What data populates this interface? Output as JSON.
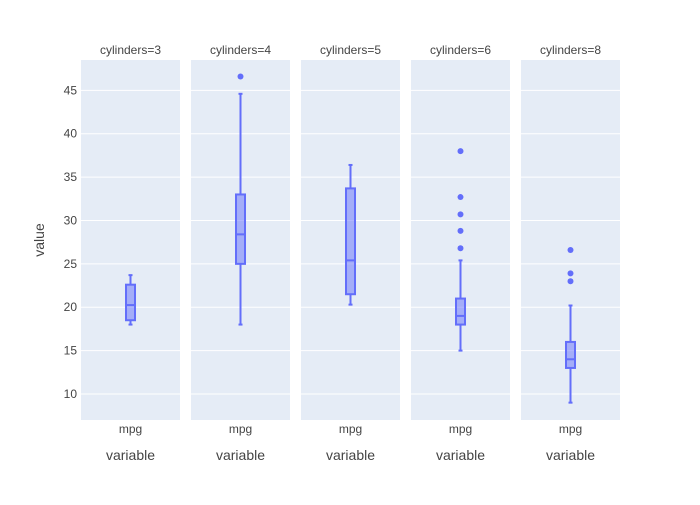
{
  "chart_data": {
    "type": "box",
    "ylabel": "value",
    "xlabel": "variable",
    "xcategory": "mpg",
    "ylim": [
      7,
      48.5
    ],
    "yticks": [
      10,
      15,
      20,
      25,
      30,
      35,
      40,
      45
    ],
    "grid": true,
    "color": "#636EFA",
    "panel_background": "#E5ECF6",
    "facets": [
      {
        "title": "cylinders=3",
        "box": {
          "min": 18.0,
          "q1": 18.5,
          "median": 20.25,
          "q3": 22.6,
          "max": 23.7
        },
        "outliers": []
      },
      {
        "title": "cylinders=4",
        "box": {
          "min": 18.0,
          "q1": 25.0,
          "median": 28.4,
          "q3": 33.0,
          "max": 44.6
        },
        "outliers": [
          46.6
        ]
      },
      {
        "title": "cylinders=5",
        "box": {
          "min": 20.3,
          "q1": 21.5,
          "median": 25.4,
          "q3": 33.7,
          "max": 36.4
        },
        "outliers": []
      },
      {
        "title": "cylinders=6",
        "box": {
          "min": 15.0,
          "q1": 18.0,
          "median": 19.0,
          "q3": 21.0,
          "max": 25.4
        },
        "outliers": [
          26.8,
          28.8,
          30.7,
          32.7,
          38.0
        ]
      },
      {
        "title": "cylinders=8",
        "box": {
          "min": 9.0,
          "q1": 13.0,
          "median": 14.0,
          "q3": 16.0,
          "max": 20.2
        },
        "outliers": [
          23.0,
          23.9,
          26.6
        ]
      }
    ]
  }
}
